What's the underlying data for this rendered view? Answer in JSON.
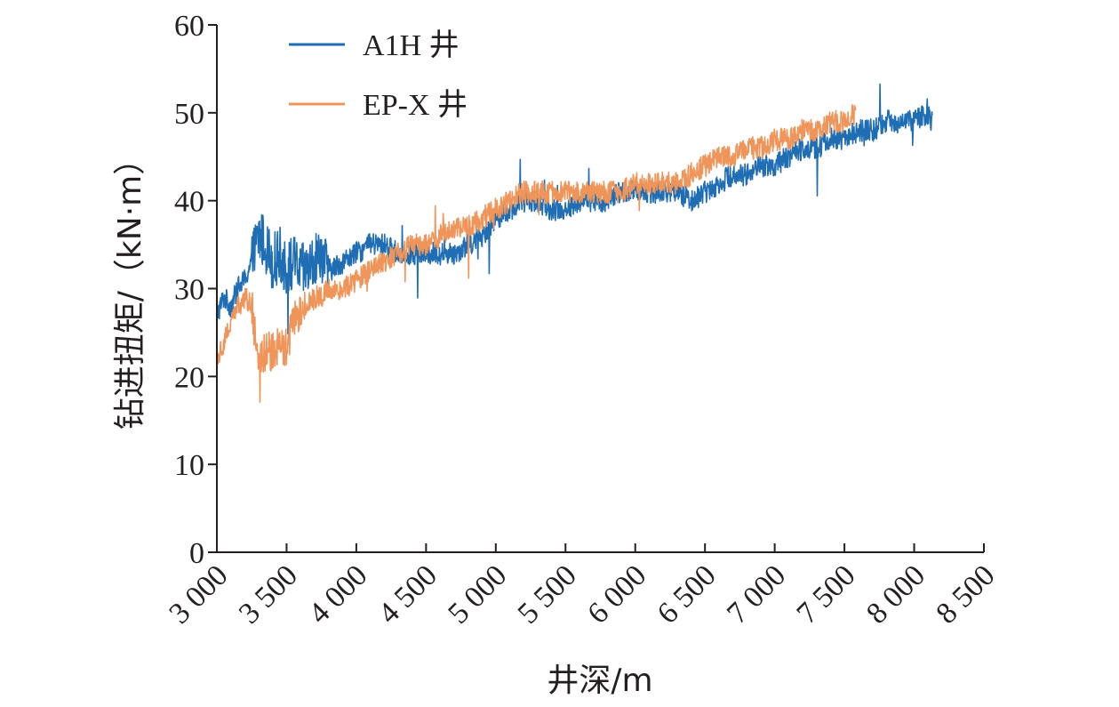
{
  "chart_data": {
    "type": "line",
    "xlabel": "井深/m",
    "ylabel": "钻进扭矩/（kN·m）",
    "xlim": [
      3000,
      8500
    ],
    "ylim": [
      0,
      60
    ],
    "x_ticks": [
      3000,
      3500,
      4000,
      4500,
      5000,
      5500,
      6000,
      6500,
      7000,
      7500,
      8000,
      8500
    ],
    "x_tick_labels": [
      "3 000",
      "3 500",
      "4 000",
      "4 500",
      "5 000",
      "5 500",
      "6 000",
      "6 500",
      "7 000",
      "7 500",
      "8 000",
      "8 500"
    ],
    "y_ticks": [
      0,
      10,
      20,
      30,
      40,
      50,
      60
    ],
    "y_tick_labels": [
      "0",
      "10",
      "20",
      "30",
      "40",
      "50",
      "60"
    ],
    "grid": false,
    "legend_position": "top-left",
    "series": [
      {
        "name": "A1H 井",
        "color": "#1f6db3",
        "x": [
          3000,
          3050,
          3100,
          3150,
          3200,
          3250,
          3300,
          3350,
          3400,
          3450,
          3500,
          3550,
          3600,
          3650,
          3700,
          3750,
          3800,
          3900,
          4000,
          4100,
          4200,
          4300,
          4400,
          4500,
          4600,
          4700,
          4800,
          4900,
          5000,
          5100,
          5200,
          5300,
          5400,
          5500,
          5600,
          5700,
          5800,
          5900,
          6000,
          6100,
          6200,
          6300,
          6400,
          6500,
          6600,
          6700,
          6800,
          6900,
          7000,
          7100,
          7200,
          7300,
          7400,
          7500,
          7600,
          7700,
          7800,
          7900,
          8000,
          8100,
          8130
        ],
        "y": [
          27,
          29,
          28,
          30,
          31,
          33,
          36,
          35,
          33,
          34,
          32,
          33,
          32,
          32,
          33,
          34,
          32,
          33,
          34,
          35,
          35,
          34,
          34,
          34,
          34,
          34,
          35,
          36,
          38,
          39,
          40,
          40,
          39,
          39,
          40,
          40,
          40,
          41,
          41,
          41,
          41,
          41,
          40,
          41,
          42,
          43,
          43,
          44,
          44,
          45,
          46,
          46,
          47,
          47,
          48,
          48,
          49,
          49,
          49,
          50,
          49
        ]
      },
      {
        "name": "EP-X 井",
        "color": "#f0955a",
        "x": [
          3000,
          3050,
          3100,
          3150,
          3200,
          3250,
          3300,
          3350,
          3400,
          3450,
          3500,
          3550,
          3600,
          3650,
          3700,
          3750,
          3800,
          3900,
          4000,
          4100,
          4200,
          4300,
          4400,
          4500,
          4600,
          4700,
          4800,
          4900,
          5000,
          5100,
          5200,
          5300,
          5400,
          5500,
          5600,
          5700,
          5800,
          5900,
          6000,
          6100,
          6200,
          6300,
          6400,
          6500,
          6600,
          6700,
          6800,
          6900,
          7000,
          7100,
          7200,
          7300,
          7400,
          7500,
          7580
        ],
        "y": [
          22,
          24,
          26,
          28,
          29,
          28,
          22,
          23,
          23,
          24,
          23,
          26,
          27,
          28,
          29,
          29,
          30,
          30,
          31,
          32,
          33,
          34,
          35,
          35,
          36,
          37,
          37,
          38,
          39,
          40,
          41,
          41,
          41,
          41,
          41,
          41,
          41,
          41,
          42,
          42,
          42,
          42,
          43,
          44,
          45,
          45,
          46,
          46,
          47,
          47,
          48,
          48,
          49,
          49,
          50
        ]
      }
    ]
  }
}
